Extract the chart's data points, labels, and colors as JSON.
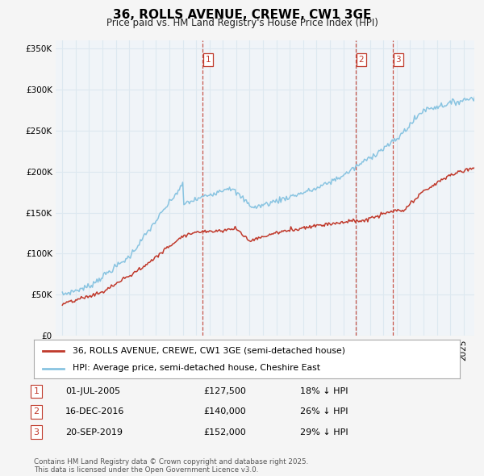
{
  "title": "36, ROLLS AVENUE, CREWE, CW1 3GE",
  "subtitle": "Price paid vs. HM Land Registry's House Price Index (HPI)",
  "legend_line1": "36, ROLLS AVENUE, CREWE, CW1 3GE (semi-detached house)",
  "legend_line2": "HPI: Average price, semi-detached house, Cheshire East",
  "footer": "Contains HM Land Registry data © Crown copyright and database right 2025.\nThis data is licensed under the Open Government Licence v3.0.",
  "transactions": [
    {
      "num": 1,
      "date": "01-JUL-2005",
      "price": "£127,500",
      "pct": "18% ↓ HPI",
      "year": 2005.5
    },
    {
      "num": 2,
      "date": "16-DEC-2016",
      "price": "£140,000",
      "pct": "26% ↓ HPI",
      "year": 2016.96
    },
    {
      "num": 3,
      "date": "20-SEP-2019",
      "price": "£152,000",
      "pct": "29% ↓ HPI",
      "year": 2019.72
    }
  ],
  "hpi_color": "#89c4e1",
  "price_color": "#c0392b",
  "vline_color": "#c0392b",
  "grid_color": "#dde8f0",
  "background_color": "#f5f5f5",
  "plot_bg_color": "#f0f4f8",
  "ylim": [
    0,
    360000
  ],
  "yticks": [
    0,
    50000,
    100000,
    150000,
    200000,
    250000,
    300000,
    350000
  ],
  "xlim_start": 1994.5,
  "xlim_end": 2025.8
}
